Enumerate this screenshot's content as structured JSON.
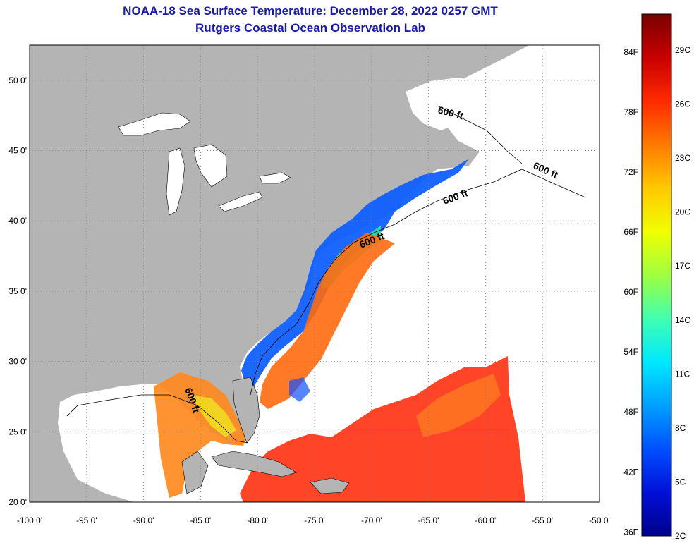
{
  "title": "NOAA-18 Sea Surface Temperature:  December 28, 2022 0257 GMT",
  "subtitle": "Rutgers Coastal Ocean Observation Lab",
  "map": {
    "lat_labels": [
      "50 0'",
      "45 0'",
      "40 0'",
      "35 0'",
      "30 0'",
      "25 0'",
      "20 0'"
    ],
    "lon_labels": [
      "-100 0'",
      "-95 0'",
      "-90 0'",
      "-85 0'",
      "-80 0'",
      "-75 0'",
      "-70 0'",
      "-65 0'",
      "-60 0'",
      "-55 0'",
      "-50 0'"
    ],
    "lat_range": [
      20,
      52.5
    ],
    "lon_range": [
      -100,
      -50
    ],
    "isobath_label": "600 ft",
    "land_color": "#b4b4b4",
    "no_data_color": "#ffffff"
  },
  "colorbar": {
    "fahrenheit_labels": [
      "84F",
      "78F",
      "72F",
      "66F",
      "60F",
      "54F",
      "48F",
      "42F",
      "36F"
    ],
    "celsius_labels": [
      "29C",
      "26C",
      "23C",
      "20C",
      "17C",
      "14C",
      "11C",
      "8C",
      "5C",
      "2C"
    ],
    "range_c": [
      2,
      31
    ],
    "gradient_colors": [
      "#7a0000",
      "#c80000",
      "#ff2a00",
      "#ff7a00",
      "#ffc800",
      "#f0ff00",
      "#a0ff40",
      "#40ffb0",
      "#00e8ff",
      "#00a0ff",
      "#0050ff",
      "#0010d8",
      "#00008a"
    ]
  }
}
